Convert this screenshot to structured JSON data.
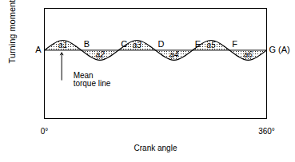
{
  "chart_data": {
    "type": "line",
    "x_label": "Crank angle",
    "y_label": "Turning moment",
    "x": [
      0,
      15,
      30,
      45,
      60,
      75,
      90,
      105,
      120,
      135,
      150,
      165,
      180,
      195,
      210,
      225,
      240,
      255,
      270,
      285,
      300,
      315,
      330,
      345,
      360
    ],
    "values": [
      62,
      68,
      71,
      68,
      62,
      56,
      53,
      56,
      62,
      68,
      71,
      68,
      62,
      56,
      53,
      56,
      62,
      68,
      71,
      68,
      62,
      56,
      53,
      56,
      62
    ],
    "color": "#000000",
    "mean": 62,
    "mean_label": "Mean\ntorque line",
    "xlim": [
      0,
      360
    ],
    "xticks": [
      {
        "value": 0,
        "label": "0°"
      },
      {
        "value": 360,
        "label": "360°"
      }
    ],
    "ylim": [
      0,
      100
    ],
    "tick_labels": "x",
    "grid": false,
    "point_labels": [
      {
        "label": "A",
        "x": 0
      },
      {
        "label": "B",
        "x": 60
      },
      {
        "label": "C",
        "x": 120
      },
      {
        "label": "D",
        "x": 180
      },
      {
        "label": "E",
        "x": 240
      },
      {
        "label": "F",
        "x": 300
      },
      {
        "label": "G (A)",
        "x": 360
      }
    ],
    "area_labels": [
      {
        "label": "a1",
        "x": 30
      },
      {
        "label": "a2",
        "x": 90
      },
      {
        "label": "a3",
        "x": 150
      },
      {
        "label": "a4",
        "x": 210
      },
      {
        "label": "a5",
        "x": 270
      },
      {
        "label": "a6",
        "x": 330
      }
    ]
  }
}
